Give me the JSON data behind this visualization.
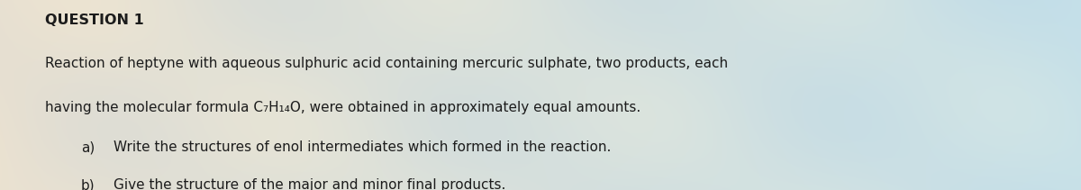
{
  "title": "QUESTION 1",
  "line1": "Reaction of heptyne with aqueous sulphuric acid containing mercuric sulphate, two products, each",
  "line2": "having the molecular formula C₇H₁₄O, were obtained in approximately equal amounts.",
  "line3a_label": "a)",
  "line3a_text": "Write the structures of enol intermediates which formed in the reaction.",
  "line3b_label": "b)",
  "line3b_text": "Give the structure of the major and minor final products.",
  "text_color": "#1c1c1c",
  "title_fontsize": 11.5,
  "body_fontsize": 11.0,
  "figsize": [
    12.0,
    2.11
  ],
  "dpi": 100
}
